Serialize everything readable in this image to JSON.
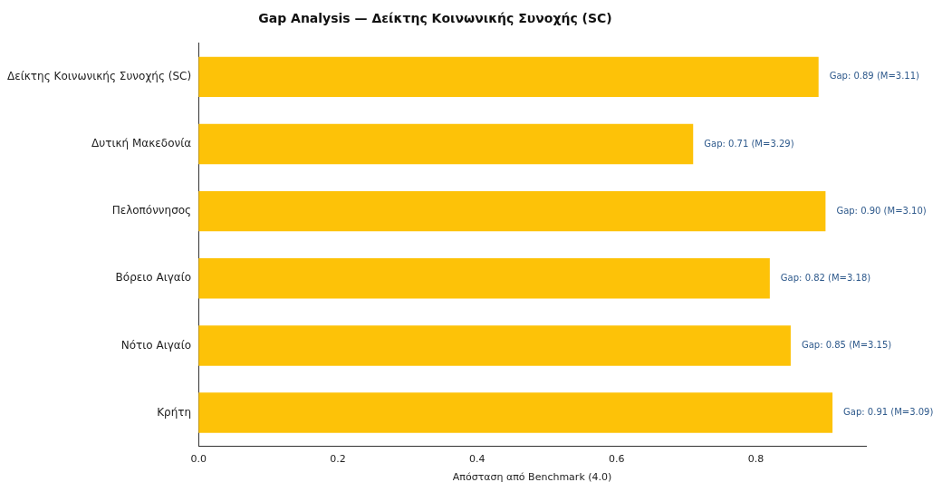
{
  "chart_data": {
    "type": "bar",
    "orientation": "horizontal",
    "title": "Gap Analysis — Δείκτης Κοινωνικής Συνοχής (SC)",
    "xlabel": "Απόσταση από Benchmark (4.0)",
    "categories": [
      "Δείκτης Κοινωνικής Συνοχής (SC)",
      "Δυτική Μακεδονία",
      "Πελοπόννησος",
      "Βόρειο Αιγαίο",
      "Νότιο Αιγαίο",
      "Κρήτη"
    ],
    "values": [
      0.89,
      0.71,
      0.9,
      0.82,
      0.85,
      0.91
    ],
    "value_labels": [
      "Gap: 0.89 (M=3.11)",
      "Gap: 0.71 (M=3.29)",
      "Gap: 0.90 (M=3.10)",
      "Gap: 0.82 (M=3.18)",
      "Gap: 0.85 (M=3.15)",
      "Gap: 0.91 (M=3.09)"
    ],
    "color": "#fdc208",
    "xlim": [
      0,
      0.958
    ],
    "xticks": [
      {
        "value": 0,
        "label": "0.0"
      },
      {
        "value": 0.2,
        "label": "0.2"
      },
      {
        "value": 0.4,
        "label": "0.4"
      },
      {
        "value": 0.6,
        "label": "0.6"
      },
      {
        "value": 0.8,
        "label": "0.8"
      }
    ],
    "grid": false,
    "legend": false
  }
}
